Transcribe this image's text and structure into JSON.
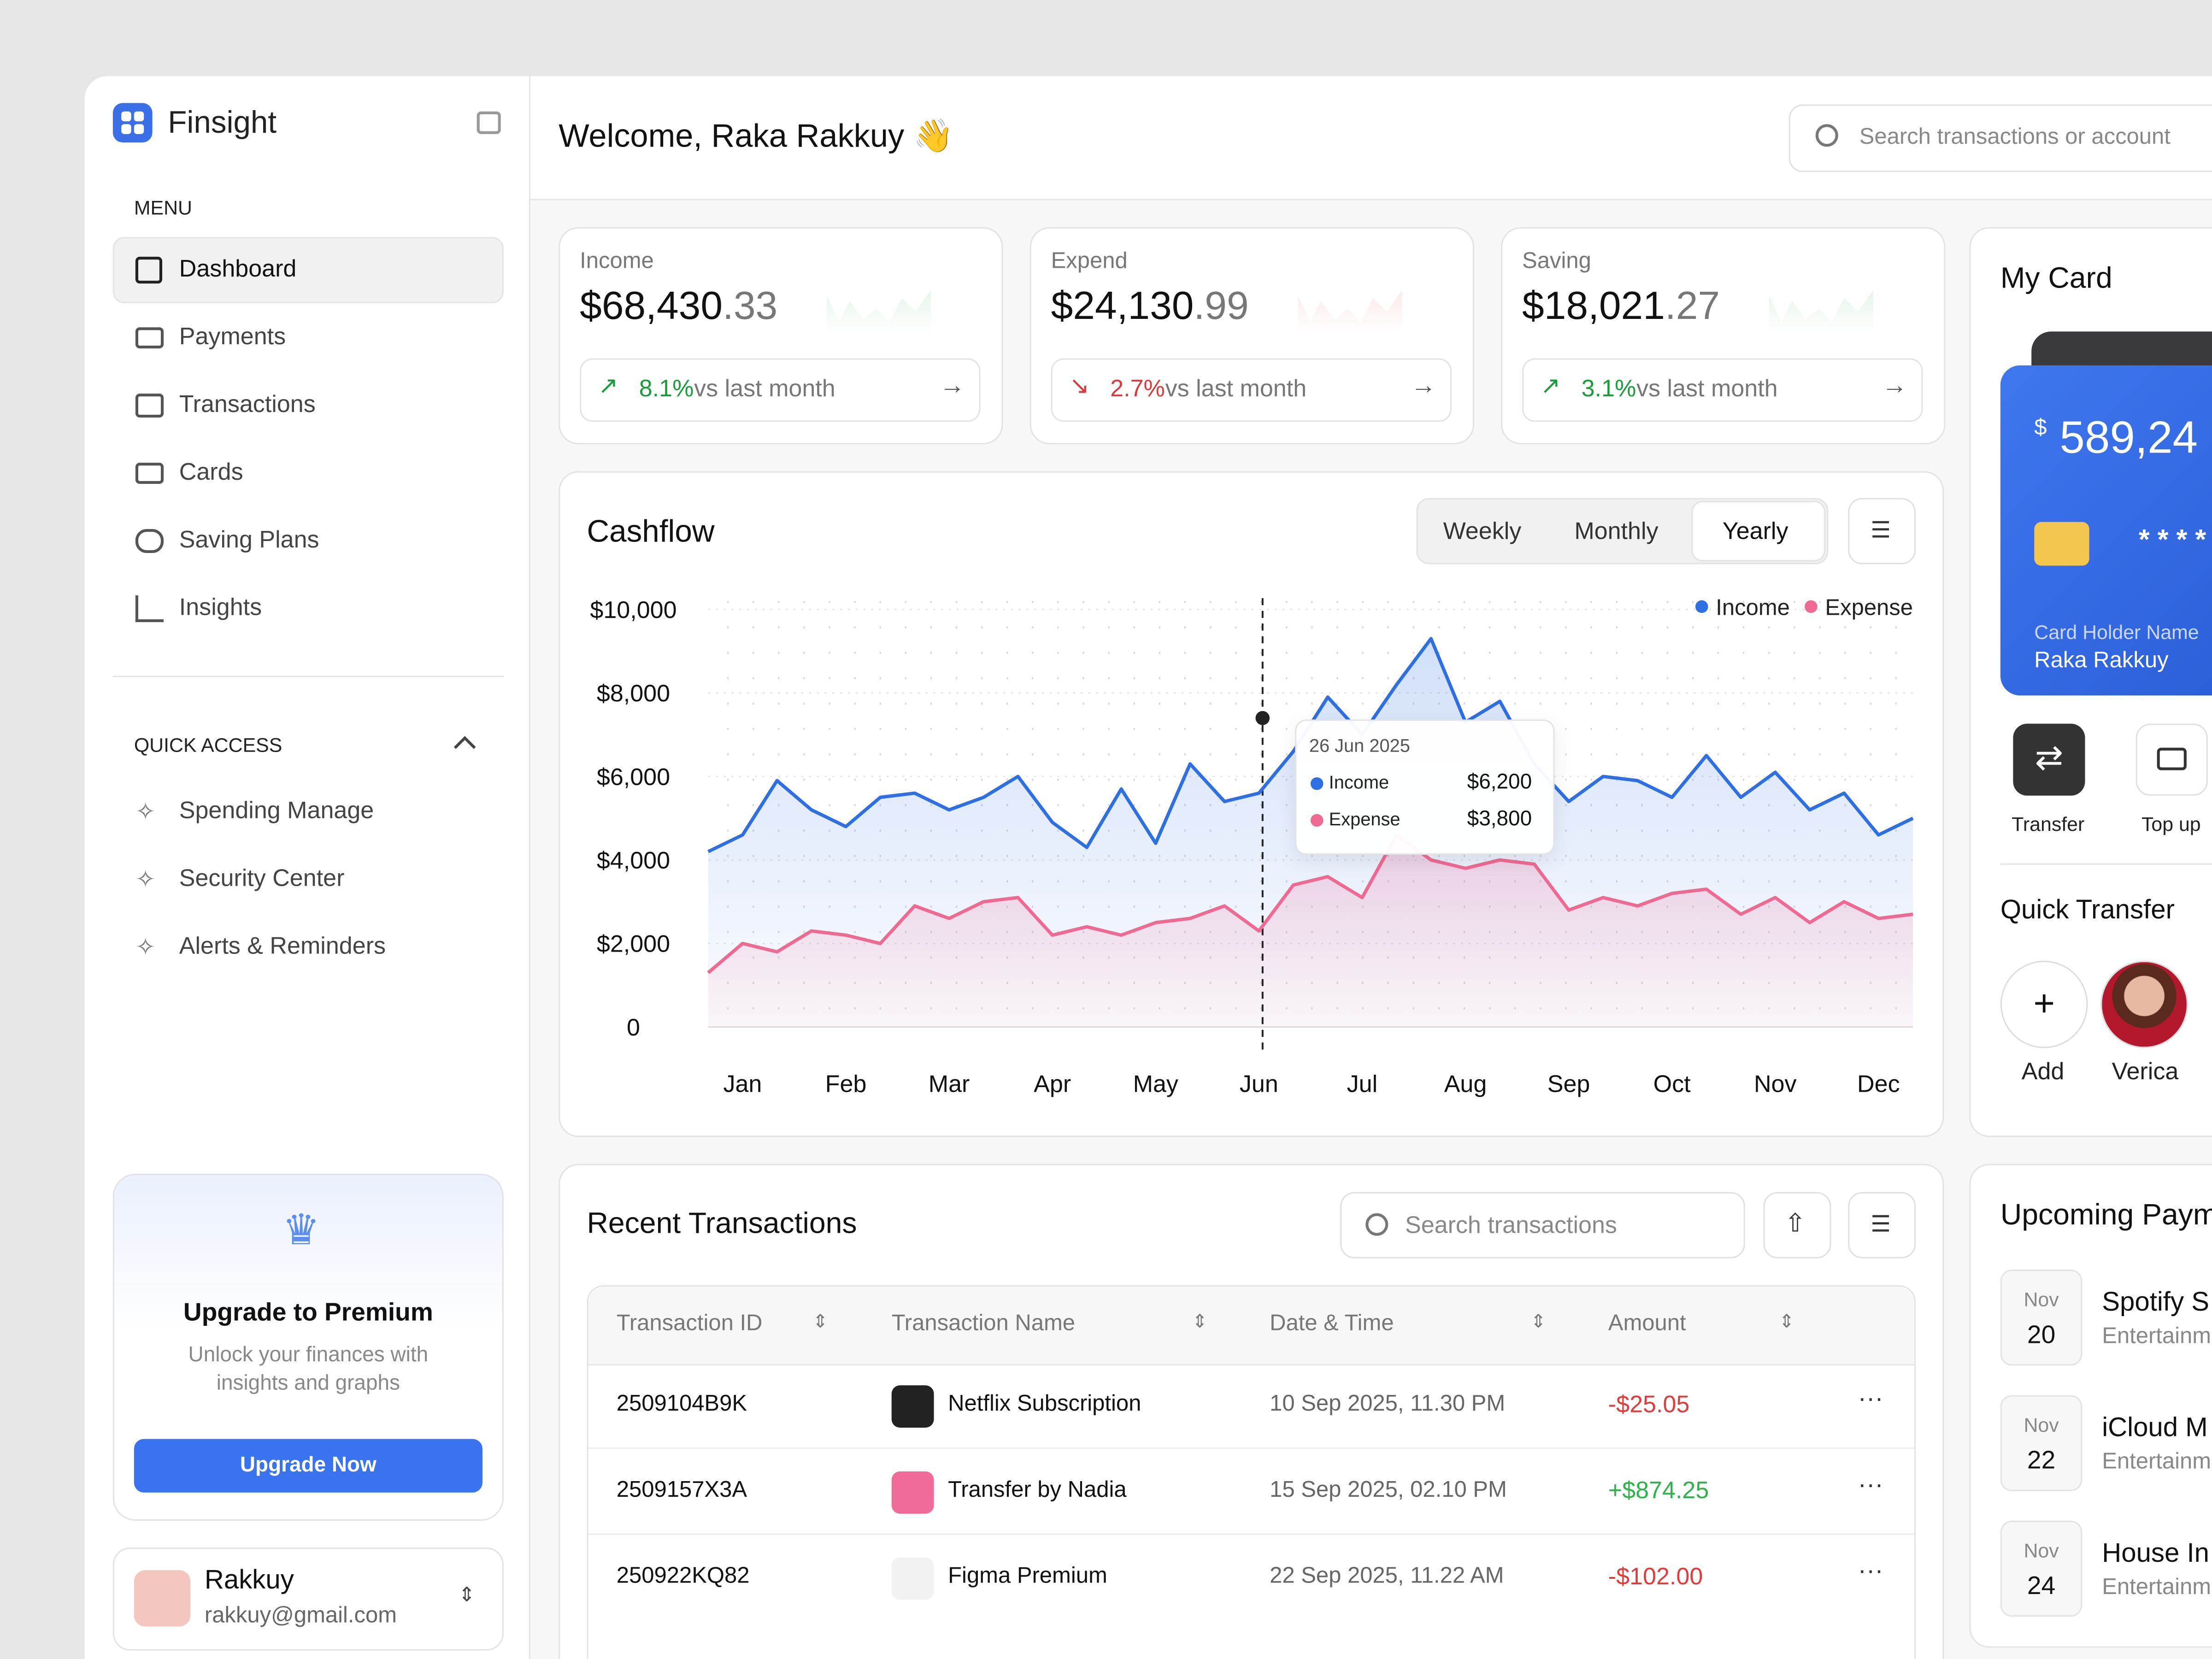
{
  "sidebar": {
    "brand": "Finsight",
    "menu_title": "MENU",
    "menu": [
      "Dashboard",
      "Payments",
      "Transactions",
      "Cards",
      "Saving Plans",
      "Insights"
    ],
    "quick_access_title": "QUICK ACCESS",
    "quick_access": [
      "Spending Manage",
      "Security Center",
      "Alerts & Reminders"
    ],
    "upgrade": {
      "title": "Upgrade to Premium",
      "text": "Unlock your finances with insights and graphs",
      "button": "Upgrade Now"
    },
    "user": {
      "name": "Rakkuy",
      "email": "rakkuy@gmail.com"
    }
  },
  "header": {
    "title": "Welcome, Raka Rakkuy 👋",
    "search": "Search transactions or account"
  },
  "stats": [
    {
      "label": "Income",
      "value": "$68,430",
      "cents": ".33",
      "change": "8.1%",
      "note": "vs last month"
    },
    {
      "label": "Expend",
      "value": "$24,130",
      "cents": ".99",
      "change": "2.7%",
      "note": "vs last month"
    },
    {
      "label": "Saving",
      "value": "$18,021",
      "cents": ".27",
      "change": "3.1%",
      "note": "vs last month"
    }
  ],
  "chart_data": {
    "type": "line",
    "title": "Cashflow",
    "tabs": [
      "Weekly",
      "Monthly",
      "Yearly"
    ],
    "x": [
      0,
      1,
      2,
      3,
      4,
      5,
      6,
      7,
      8,
      9,
      10,
      11,
      12,
      13,
      14,
      15,
      16,
      17,
      18,
      19,
      20,
      21,
      22,
      23,
      24,
      25,
      26,
      27,
      28,
      29,
      30,
      31,
      32,
      33,
      34,
      35
    ],
    "xlim": [
      0,
      35
    ],
    "xticks": [
      {
        "value": 1,
        "label": "Jan"
      },
      {
        "value": 4,
        "label": "Feb"
      },
      {
        "value": 7,
        "label": "Mar"
      },
      {
        "value": 10,
        "label": "Apr"
      },
      {
        "value": 13,
        "label": "May"
      },
      {
        "value": 16,
        "label": "Jun"
      },
      {
        "value": 19,
        "label": "Jul"
      },
      {
        "value": 22,
        "label": "Aug"
      },
      {
        "value": 25,
        "label": "Sep"
      },
      {
        "value": 28,
        "label": "Oct"
      },
      {
        "value": 31,
        "label": "Nov"
      },
      {
        "value": 34,
        "label": "Dec"
      }
    ],
    "ylim": [
      0,
      10000
    ],
    "yticks": [
      0,
      {
        "value": 2000,
        "label": "$2,000"
      },
      {
        "value": 4000,
        "label": "$4,000"
      },
      {
        "value": 6000,
        "label": "$6,000"
      },
      {
        "value": 8000,
        "label": "$8,000"
      },
      {
        "value": 10000,
        "label": "$10,000"
      }
    ],
    "grid": true,
    "legend": "top-right",
    "series": [
      {
        "name": "Income",
        "color": "#2f6fe4",
        "values": [
          4200,
          4600,
          5900,
          5200,
          4800,
          5500,
          5600,
          5200,
          5500,
          6000,
          4900,
          4300,
          5700,
          4400,
          6300,
          5400,
          5600,
          6600,
          7900,
          7000,
          8200,
          9300,
          7300,
          7800,
          6300,
          5400,
          6000,
          5900,
          5500,
          6500,
          5500,
          6100,
          5200,
          5600,
          4600,
          5000
        ]
      },
      {
        "name": "Expense",
        "color": "#ef6a93",
        "values": [
          1300,
          2000,
          1800,
          2300,
          2200,
          2000,
          2900,
          2600,
          3000,
          3100,
          2200,
          2400,
          2200,
          2500,
          2600,
          2900,
          2300,
          3400,
          3600,
          3100,
          4600,
          4000,
          3800,
          4000,
          3900,
          2800,
          3100,
          2900,
          3200,
          3300,
          2700,
          3100,
          2500,
          3000,
          2600,
          2700
        ]
      }
    ],
    "tooltip": {
      "date": "26 Jun 2025",
      "rows": [
        {
          "name": "Income",
          "value": "$6,200"
        },
        {
          "name": "Expense",
          "value": "$3,800"
        }
      ]
    }
  },
  "table": {
    "title": "Recent Transactions",
    "search": "Search transactions",
    "columns": [
      "Transaction ID",
      "Transaction Name",
      "Date & Time",
      "Amount"
    ],
    "rows": [
      [
        "2509104B9K",
        "Netflix Subscription",
        "10 Sep 2025, 11.30 PM",
        "-$25.05"
      ],
      [
        "2509157X3A",
        "Transfer by Nadia",
        "15 Sep 2025, 02.10 PM",
        "+$874.25"
      ],
      [
        "250922KQ82",
        "Figma Premium",
        "22 Sep 2025, 11.22 AM",
        "-$102.00"
      ]
    ]
  },
  "card": {
    "title": "My Card",
    "currency": "$",
    "balance": "589,24",
    "number": "* * * *",
    "holder_label": "Card Holder Name",
    "holder": "Raka Rakkuy"
  },
  "actions": [
    "Transfer",
    "Top up"
  ],
  "quick_transfer": {
    "title": "Quick Transfer",
    "people": [
      "Add",
      "Verica"
    ]
  },
  "upcoming": {
    "title": "Upcoming Paym",
    "items": [
      {
        "month": "Nov",
        "day": "20",
        "name": "Spotify S",
        "category": "Entertainm"
      },
      {
        "month": "Nov",
        "day": "22",
        "name": "iCloud M",
        "category": "Entertainm"
      },
      {
        "month": "Nov",
        "day": "24",
        "name": "House In",
        "category": "Entertainm"
      }
    ]
  }
}
